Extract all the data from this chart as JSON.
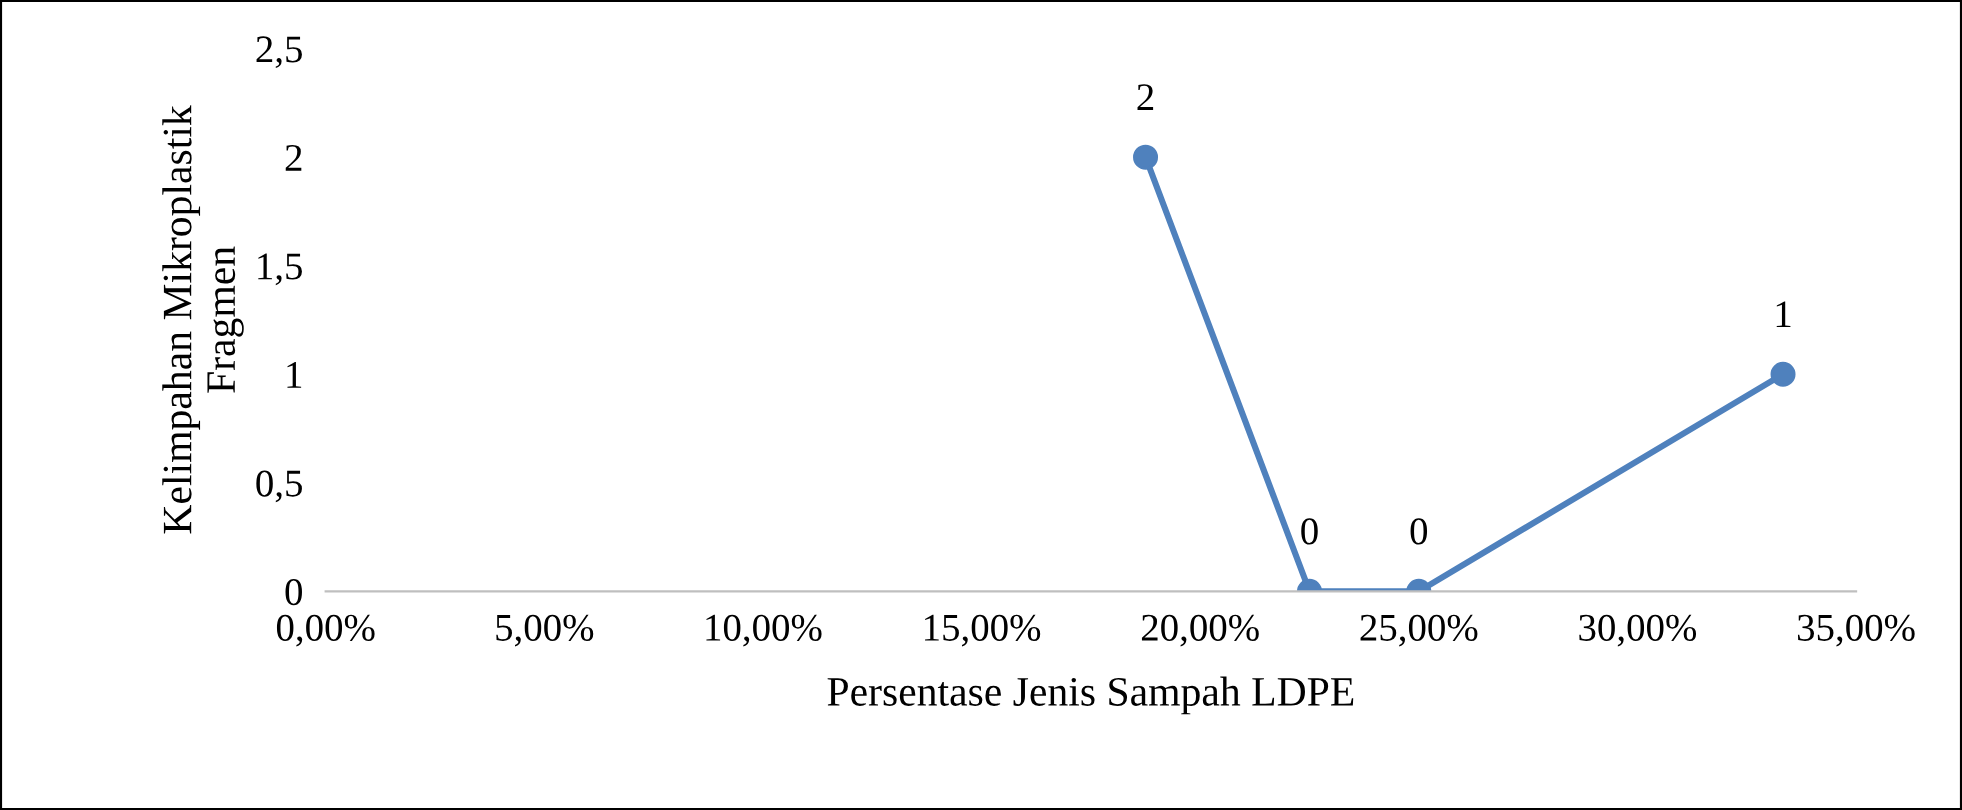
{
  "chart_data": {
    "type": "line",
    "xlabel": "Persentase Jenis Sampah LDPE",
    "ylabel": "Kelimpahan Mikroplastik\nFragmen",
    "x": [
      18.75,
      22.5,
      25,
      33.33
    ],
    "series": [
      {
        "color": "#4f81bd",
        "values": [
          2,
          0,
          0,
          1
        ]
      }
    ],
    "xlim": [
      0,
      35
    ],
    "ylim": [
      0,
      2.5
    ],
    "xticks": [
      {
        "value": 0,
        "label": "0,00%"
      },
      {
        "value": 5,
        "label": "5,00%"
      },
      {
        "value": 10,
        "label": "10,00%"
      },
      {
        "value": 15,
        "label": "15,00%"
      },
      {
        "value": 20,
        "label": "20,00%"
      },
      {
        "value": 25,
        "label": "25,00%"
      },
      {
        "value": 30,
        "label": "30,00%"
      },
      {
        "value": 35,
        "label": "35,00%"
      }
    ],
    "yticks": [
      0,
      {
        "value": 0.5,
        "label": "0,5"
      },
      1,
      {
        "value": 1.5,
        "label": "1,5"
      },
      2,
      {
        "value": 2.5,
        "label": "2,5"
      }
    ],
    "data_labels": true,
    "marker": "circle",
    "line_style": "solid"
  }
}
